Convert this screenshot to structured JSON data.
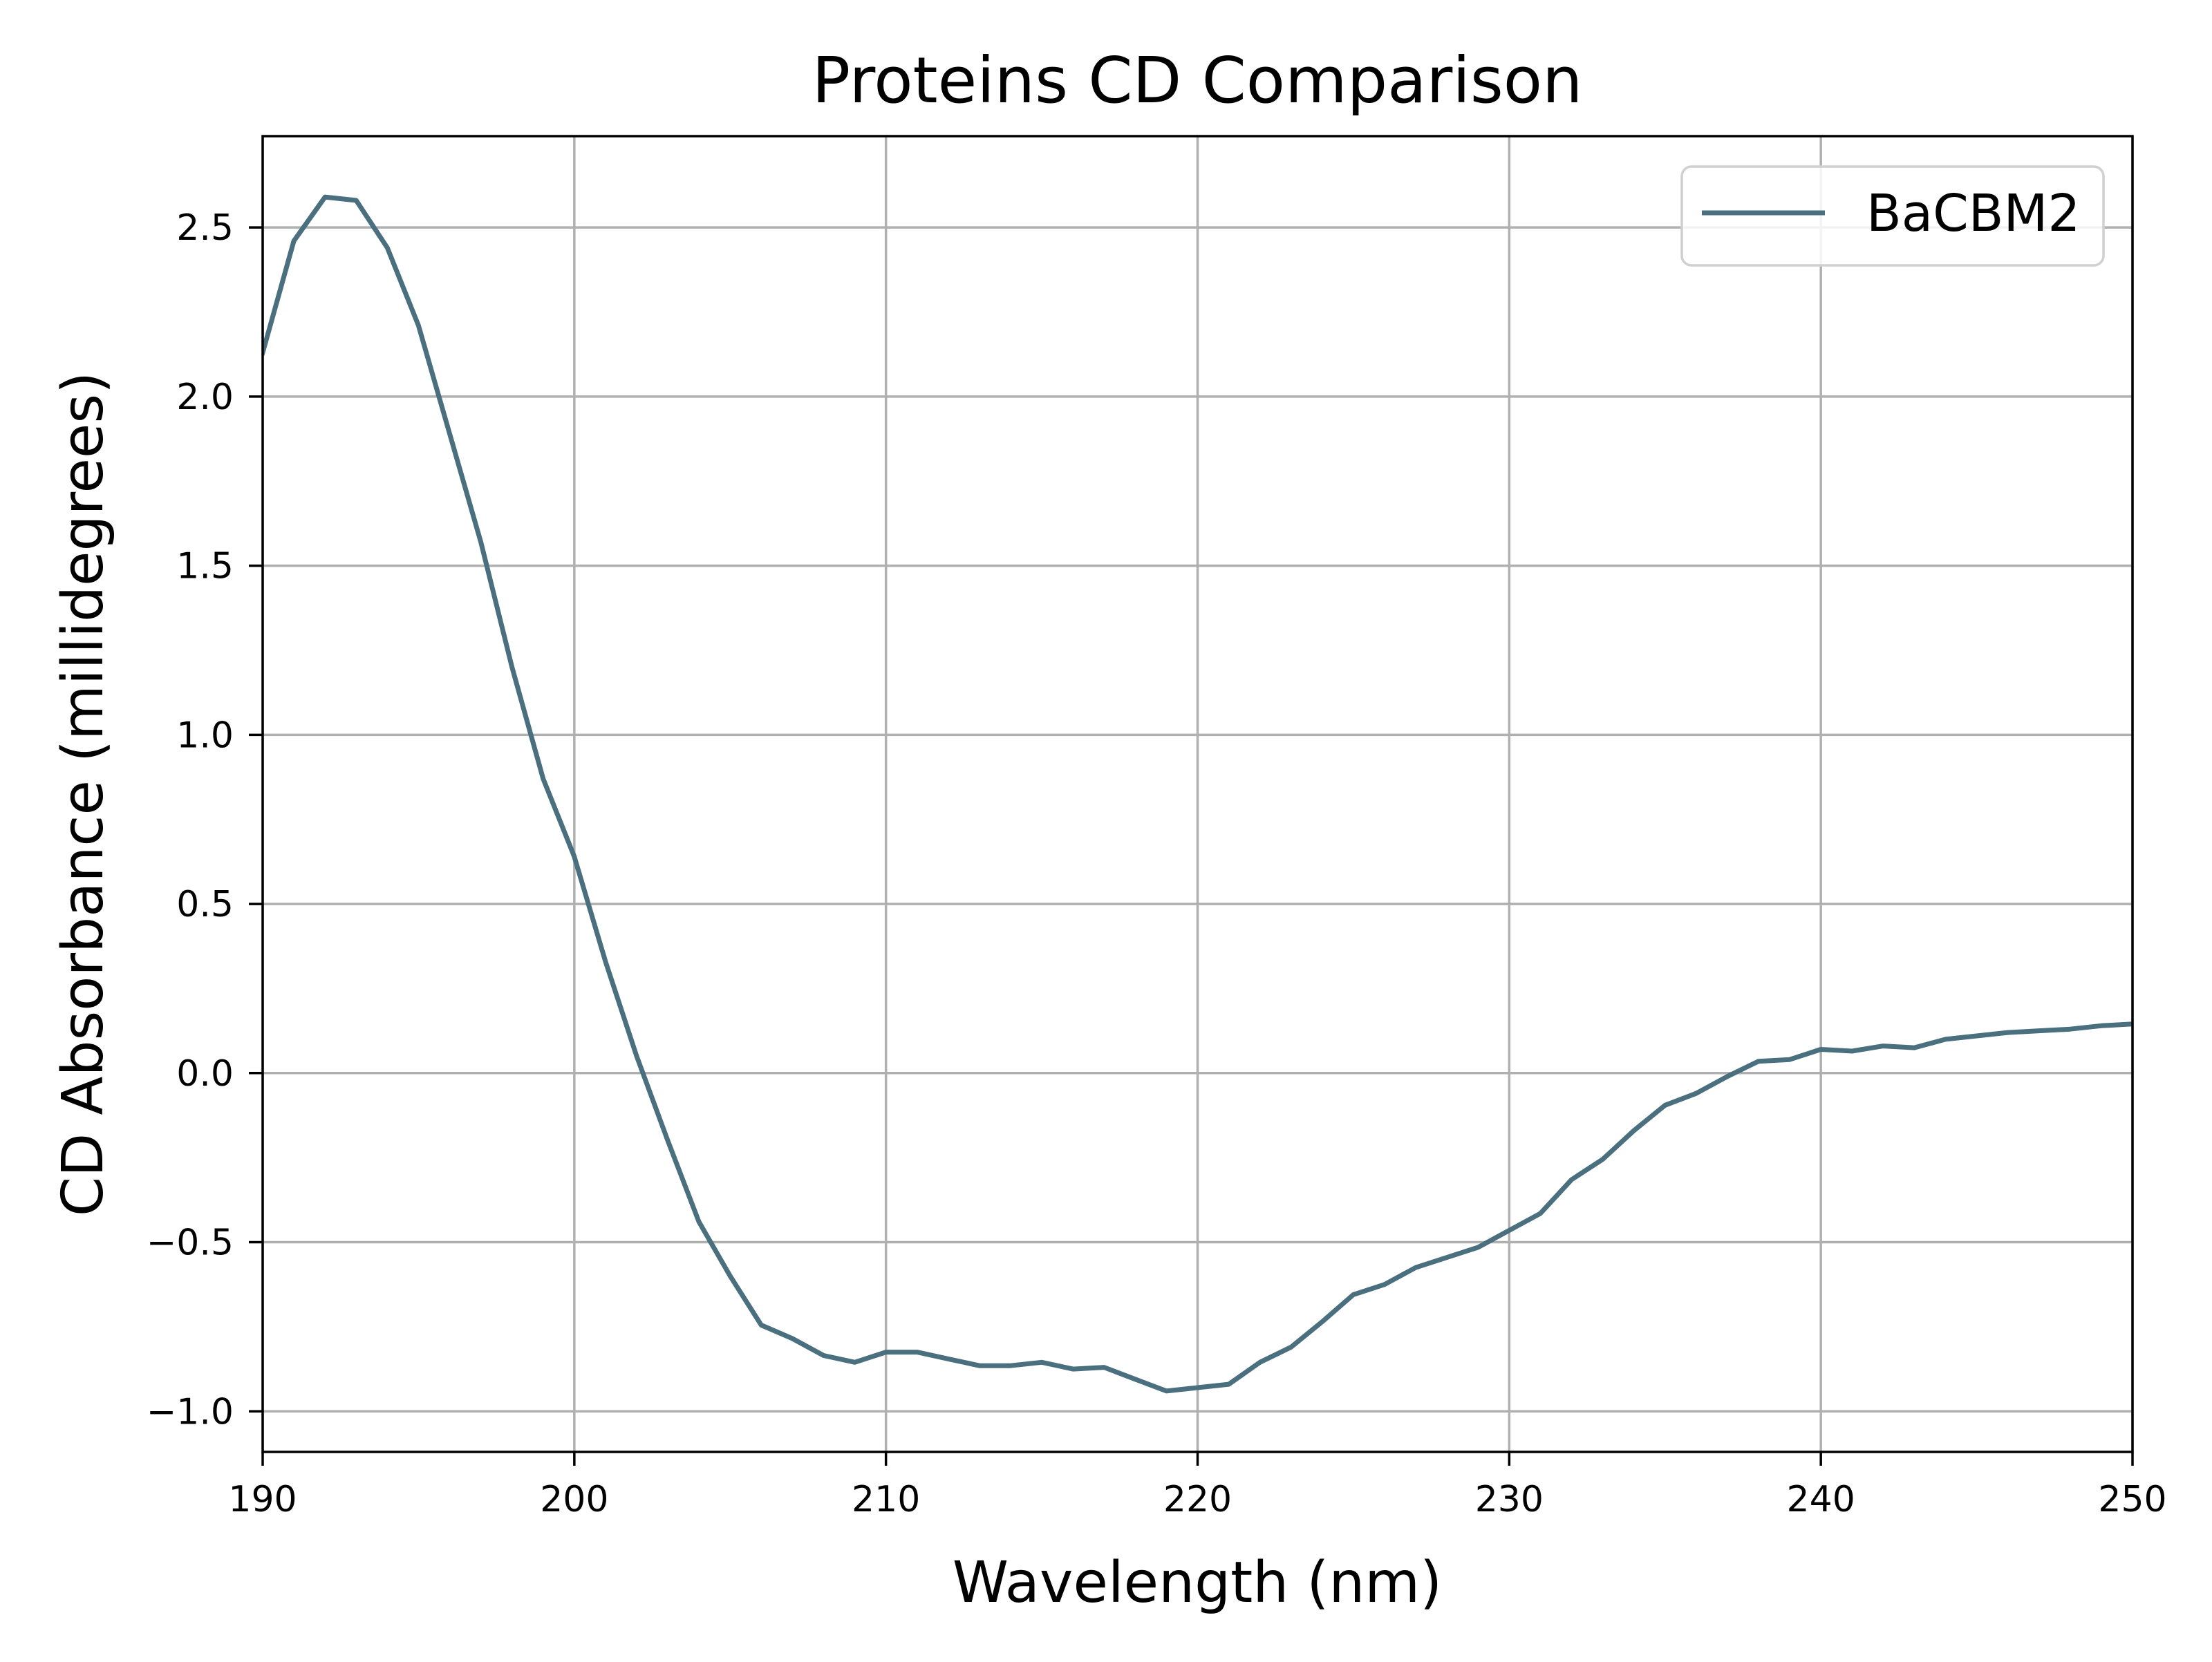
{
  "chart_data": {
    "type": "line",
    "title": "Proteins CD Comparison",
    "xlabel": "Wavelength (nm)",
    "ylabel": "CD Absorbance (millidegrees)",
    "xlim": [
      190,
      250
    ],
    "ylim": [
      -1.12,
      2.77
    ],
    "x_ticks": [
      190,
      200,
      210,
      220,
      230,
      240,
      250
    ],
    "x_tick_labels": [
      "190",
      "200",
      "210",
      "220",
      "230",
      "240",
      "250"
    ],
    "y_ticks": [
      -1.0,
      -0.5,
      0.0,
      0.5,
      1.0,
      1.5,
      2.0,
      2.5
    ],
    "y_tick_labels": [
      "−1.0",
      "−0.5",
      "0.0",
      "0.5",
      "1.0",
      "1.5",
      "2.0",
      "2.5"
    ],
    "grid": true,
    "legend_position": "top-right",
    "series": [
      {
        "name": "BaCBM2",
        "color": "#4a6f7e",
        "x": [
          190,
          191,
          192,
          193,
          194,
          195,
          196,
          197,
          198,
          199,
          200,
          201,
          202,
          203,
          204,
          205,
          206,
          207,
          208,
          209,
          210,
          211,
          212,
          213,
          214,
          215,
          216,
          217,
          218,
          219,
          220,
          221,
          222,
          223,
          224,
          225,
          226,
          227,
          228,
          229,
          230,
          231,
          232,
          233,
          234,
          235,
          236,
          237,
          238,
          239,
          240,
          241,
          242,
          243,
          244,
          245,
          246,
          247,
          248,
          249,
          250
        ],
        "y": [
          2.13,
          2.46,
          2.59,
          2.58,
          2.44,
          2.21,
          1.89,
          1.57,
          1.2,
          0.87,
          0.64,
          0.33,
          0.05,
          -0.2,
          -0.44,
          -0.6,
          -0.745,
          -0.785,
          -0.835,
          -0.855,
          -0.825,
          -0.825,
          -0.845,
          -0.865,
          -0.865,
          -0.855,
          -0.875,
          -0.87,
          -0.905,
          -0.94,
          -0.93,
          -0.92,
          -0.855,
          -0.81,
          -0.735,
          -0.655,
          -0.625,
          -0.575,
          -0.545,
          -0.515,
          -0.465,
          -0.415,
          -0.315,
          -0.255,
          -0.17,
          -0.095,
          -0.06,
          -0.01,
          0.035,
          0.04,
          0.07,
          0.065,
          0.08,
          0.075,
          0.1,
          0.11,
          0.12,
          0.125,
          0.13,
          0.14,
          0.145
        ]
      }
    ]
  }
}
